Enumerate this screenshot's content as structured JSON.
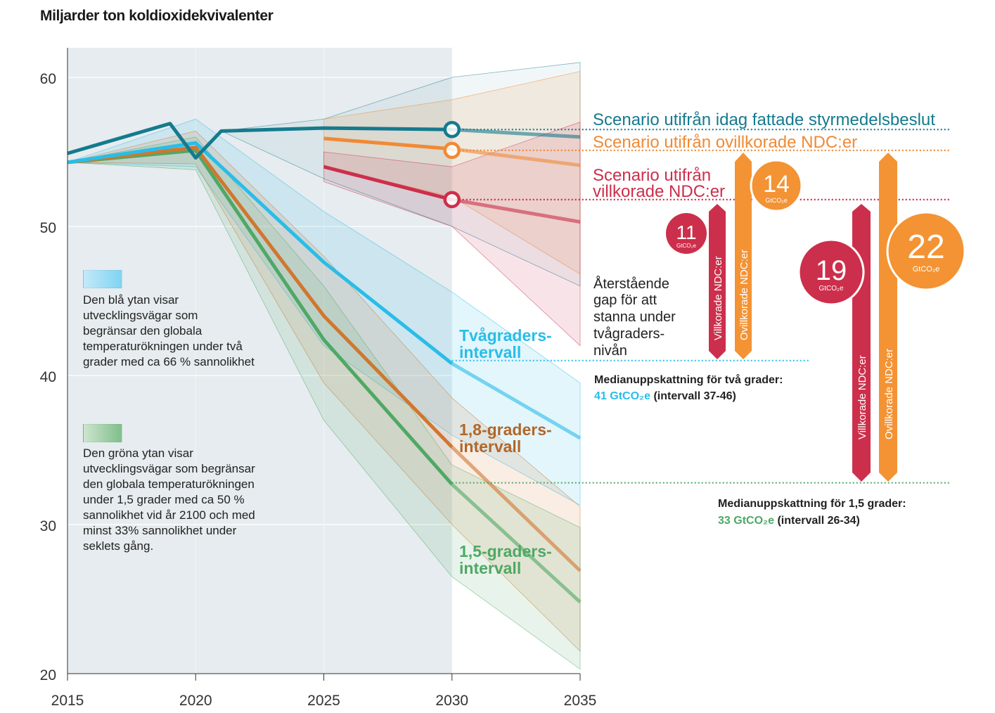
{
  "chart_data": {
    "type": "line",
    "title": "",
    "ylabel": "Miljarder ton koldioxidekvivalenter",
    "xlabel": "",
    "xlim": [
      2015,
      2035
    ],
    "ylim": [
      20,
      62
    ],
    "x_ticks": [
      "2015",
      "2020",
      "2025",
      "2030",
      "2035"
    ],
    "y_ticks": [
      "20",
      "30",
      "40",
      "50",
      "60"
    ],
    "historical_shading_until": 2030,
    "series": [
      {
        "name": "Scenario utifrån idag fattade styrmedelsbeslut",
        "color": "#157a8e",
        "x": [
          2015,
          2019,
          2020,
          2021,
          2025,
          2030,
          2035
        ],
        "values": [
          54.9,
          56.9,
          54.6,
          56.4,
          56.6,
          56.5,
          56.0
        ],
        "marker_2030": 56.5,
        "band_low": [
          54.9,
          56.9,
          54.6,
          56.4,
          53.2,
          50.0,
          46.0
        ],
        "band_high": [
          54.9,
          56.9,
          54.6,
          56.4,
          57.2,
          60.0,
          61.0
        ]
      },
      {
        "name": "Scenario utifrån ovillkorade NDC:er",
        "color": "#f08a35",
        "x": [
          2025,
          2030,
          2035
        ],
        "values": [
          55.9,
          55.2,
          54.1
        ],
        "marker_2030": 55.2,
        "band_low": [
          54.0,
          52.0,
          46.8
        ],
        "band_high": [
          57.2,
          58.5,
          60.4
        ]
      },
      {
        "name": "Scenario utifrån villkorade NDC:er",
        "color": "#cc2f4b",
        "x": [
          2025,
          2030,
          2035
        ],
        "values": [
          54.0,
          51.8,
          50.3
        ],
        "marker_2030": 51.8,
        "band_low": [
          53.0,
          50.0,
          42.0
        ],
        "band_high": [
          55.0,
          54.0,
          57.0
        ]
      },
      {
        "name": "Tvågraders-intervall",
        "color": "#29bde8",
        "x": [
          2015,
          2020,
          2025,
          2030,
          2035
        ],
        "values": [
          54.3,
          55.6,
          47.6,
          40.8,
          35.8
        ],
        "band_low": [
          54.3,
          54.0,
          42.0,
          36.0,
          31.3
        ],
        "band_high": [
          54.3,
          57.2,
          51.0,
          45.6,
          39.5
        ]
      },
      {
        "name": "1,8-graders-intervall",
        "color": "#d0772f",
        "x": [
          2015,
          2020,
          2025,
          2030,
          2035
        ],
        "values": [
          54.3,
          55.3,
          44.0,
          35.2,
          26.9
        ],
        "band_low": [
          54.3,
          54.2,
          39.5,
          30.0,
          21.5
        ],
        "band_high": [
          54.3,
          56.4,
          48.0,
          38.5,
          31.2
        ]
      },
      {
        "name": "1,5-graders-intervall",
        "color": "#4fa865",
        "x": [
          2015,
          2020,
          2025,
          2030,
          2035
        ],
        "values": [
          54.3,
          55.1,
          42.4,
          32.7,
          24.8
        ],
        "band_low": [
          54.3,
          53.8,
          37.0,
          26.5,
          20.3
        ],
        "band_high": [
          54.3,
          56.0,
          46.0,
          34.0,
          29.8
        ]
      }
    ],
    "reference_lines": [
      {
        "name": "Medianuppskattning för två grader",
        "value": 41,
        "range": "37-46",
        "color": "#29bde8"
      },
      {
        "name": "Medianuppskattning för 1,5 grader",
        "value": 33,
        "range": "26-34",
        "color": "#4fa865"
      }
    ],
    "gaps": [
      {
        "label": "Villkorade NDC:er",
        "target": "two_degrees",
        "gap": 11,
        "unit": "GtCO₂e"
      },
      {
        "label": "Ovillkorade NDC:er",
        "target": "two_degrees",
        "gap": 14,
        "unit": "GtCO₂e"
      },
      {
        "label": "Villkorade NDC:er",
        "target": "one_point_five_degrees",
        "gap": 19,
        "unit": "GtCO₂e"
      },
      {
        "label": "Ovillkorade NDC:er",
        "target": "one_point_five_degrees",
        "gap": 22,
        "unit": "GtCO₂e"
      }
    ]
  },
  "labels": {
    "y_title": "Miljarder ton koldioxidekvivalenter",
    "scenario_policy": "Scenario utifrån idag fattade styrmedelsbeslut",
    "scenario_unconditional": "Scenario utifrån ovillkorade NDC:er",
    "scenario_conditional_1": "Scenario utifrån",
    "scenario_conditional_2": "villkorade NDC:er",
    "two_deg_1": "Tvågraders-",
    "two_deg_2": "intervall",
    "one8_1": "1,8-graders-",
    "one8_2": "intervall",
    "one5_1": "1,5-graders-",
    "one5_2": "intervall",
    "gap_text_1": "Återstående",
    "gap_text_2": "gap för att",
    "gap_text_3": "stanna under",
    "gap_text_4": "tvågraders-",
    "gap_text_5": "nivån",
    "median_two_title": "Medianuppskattning för två grader:",
    "median_two_value": "41 GtCO₂e",
    "median_two_range": " (intervall 37-46)",
    "median_one5_title": "Medianuppskattning för 1,5 grader:",
    "median_one5_value": "33 GtCO₂e",
    "median_one5_range": " (intervall 26-34)",
    "bar_conditional": "Villkorade NDC:er",
    "bar_unconditional": "Ovillkorade NDC:er",
    "unit": "GtCO₂e",
    "gap_11": "11",
    "gap_14": "14",
    "gap_19": "19",
    "gap_22": "22"
  },
  "legend": {
    "blue_text": "Den blå ytan visar\nutvecklingsvägar som\nbegränsar den globala\ntemperaturökningen under två\ngrader med ca 66 % sannolikhet",
    "green_text": "Den gröna ytan visar\nutvecklingsvägar som begränsar\nden globala temperaturökningen\nunder 1,5 grader med ca 50 %\nsannolikhet vid år 2100 och med\nminst 33% sannolikhet under\nseklets gång."
  },
  "colors": {
    "policy": "#157a8e",
    "unconditional": "#f08a35",
    "conditional": "#cc2f4b",
    "two_deg": "#29bde8",
    "one8": "#d0772f",
    "one5": "#4fa865",
    "one8_label": "#b0672c",
    "bg_shade": "#e6ecef"
  }
}
